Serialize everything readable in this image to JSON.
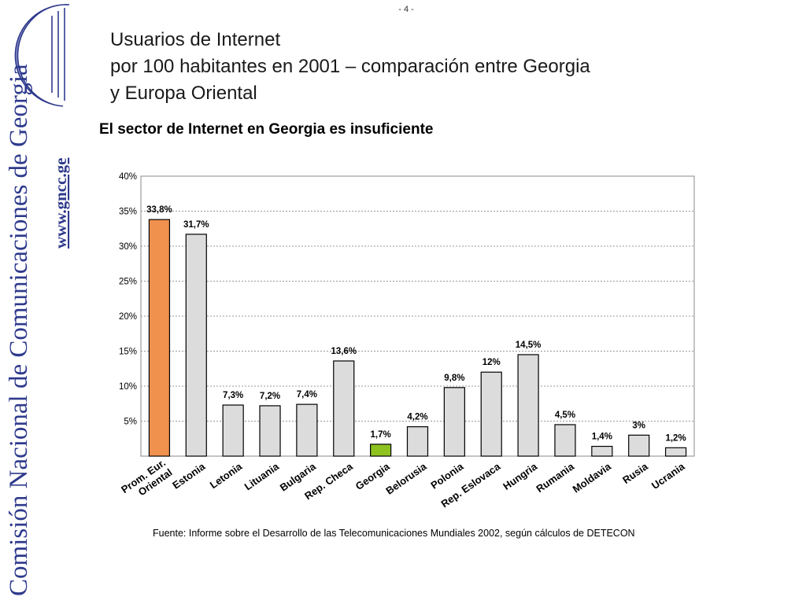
{
  "page_number": "- 4 -",
  "sidebar": {
    "organization": "Comisión Nacional de Comunicaciones de Georgia",
    "website": "www.gncc.ge",
    "logo_icon": "crescent-logo-icon",
    "accent_color": "#2E3A8C"
  },
  "title": {
    "line1": "Usuarios de Internet",
    "line2": "por 100 habitantes en 2001 – comparación entre Georgia",
    "line3": "y Europa Oriental"
  },
  "subtitle": "El sector de Internet en Georgia es insuficiente",
  "source": "Fuente:  Informe sobre el Desarrollo de las Telecomunicaciones Mundiales 2002, según cálculos de DETECON",
  "chart_data": {
    "type": "bar",
    "title": "",
    "xlabel": "",
    "ylabel": "",
    "ylim": [
      0,
      40
    ],
    "yticks": [
      5,
      10,
      15,
      20,
      25,
      30,
      35,
      40
    ],
    "ytick_labels": [
      "5%",
      "10%",
      "15%",
      "20%",
      "25%",
      "30%",
      "35%",
      "40%"
    ],
    "grid": true,
    "categories": [
      "Prom. Eur. Oriental",
      "Estonia",
      "Letonia",
      "Lituania",
      "Bulgaria",
      "Rep. Checa",
      "Georgia",
      "Belorusia",
      "Polonia",
      "Rep. Eslovaca",
      "Hungria",
      "Rumania",
      "Moldavia",
      "Rusia",
      "Ucrania"
    ],
    "category_labels": [
      [
        "Prom. Eur.",
        "Oriental"
      ],
      [
        "Estonia"
      ],
      [
        "Letonia"
      ],
      [
        "Lituania"
      ],
      [
        "Bulgaria"
      ],
      [
        "Rep. Checa"
      ],
      [
        "Georgia"
      ],
      [
        "Belorusia"
      ],
      [
        "Polonia"
      ],
      [
        "Rep. Eslovaca"
      ],
      [
        "Hungria"
      ],
      [
        "Rumania"
      ],
      [
        "Moldavia"
      ],
      [
        "Rusia"
      ],
      [
        "Ucrania"
      ]
    ],
    "values": [
      33.8,
      31.7,
      7.3,
      7.2,
      7.4,
      13.6,
      1.7,
      4.2,
      9.8,
      12.0,
      14.5,
      4.5,
      1.4,
      3.0,
      1.2
    ],
    "value_labels": [
      "33,8%",
      "31,7%",
      "7,3%",
      "7,2%",
      "7,4%",
      "13,6%",
      "1,7%",
      "4,2%",
      "9,8%",
      "12%",
      "14,5%",
      "4,5%",
      "1,4%",
      "3%",
      "1,2%"
    ],
    "colors": {
      "default": "#DCDCDC",
      "highlight_average": "#F0914E",
      "highlight_georgia": "#8DC21F",
      "border": "#000000",
      "grid": "#999999"
    }
  }
}
